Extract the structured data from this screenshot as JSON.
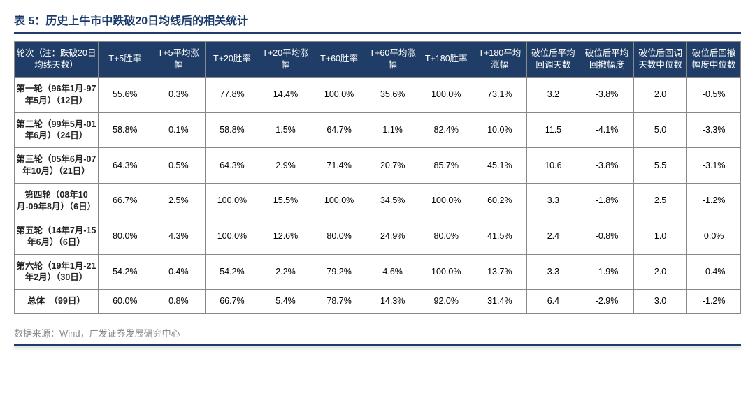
{
  "title": "表 5：历史上牛市中跌破20日均线后的相关统计",
  "source": "数据来源：Wind，广发证券发展研究中心",
  "colors": {
    "header_bg": "#1f3d66",
    "header_fg": "#ffffff",
    "title_fg": "#1a3a6b",
    "border": "#888888",
    "source_fg": "#8a8a8a",
    "rule": "#1f3d66",
    "bg": "#ffffff"
  },
  "table": {
    "columns": [
      "轮次（注：跌破20日均线天数）",
      "T+5胜率",
      "T+5平均涨幅",
      "T+20胜率",
      "T+20平均涨幅",
      "T+60胜率",
      "T+60平均涨幅",
      "T+180胜率",
      "T+180平均涨幅",
      "破位后平均回调天数",
      "破位后平均回撤幅度",
      "破位后回调天数中位数",
      "破位后回撤幅度中位数"
    ],
    "rows": [
      {
        "label": "第一轮（96年1月-97年5月）（12日）",
        "cells": [
          "55.6%",
          "0.3%",
          "77.8%",
          "14.4%",
          "100.0%",
          "35.6%",
          "100.0%",
          "73.1%",
          "3.2",
          "-3.8%",
          "2.0",
          "-0.5%"
        ]
      },
      {
        "label": "第二轮（99年5月-01年6月）（24日）",
        "cells": [
          "58.8%",
          "0.1%",
          "58.8%",
          "1.5%",
          "64.7%",
          "1.1%",
          "82.4%",
          "10.0%",
          "11.5",
          "-4.1%",
          "5.0",
          "-3.3%"
        ]
      },
      {
        "label": "第三轮（05年6月-07年10月）（21日）",
        "cells": [
          "64.3%",
          "0.5%",
          "64.3%",
          "2.9%",
          "71.4%",
          "20.7%",
          "85.7%",
          "45.1%",
          "10.6",
          "-3.8%",
          "5.5",
          "-3.1%"
        ]
      },
      {
        "label": "第四轮（08年10月-09年8月）（6日）",
        "cells": [
          "66.7%",
          "2.5%",
          "100.0%",
          "15.5%",
          "100.0%",
          "34.5%",
          "100.0%",
          "60.2%",
          "3.3",
          "-1.8%",
          "2.5",
          "-1.2%"
        ]
      },
      {
        "label": "第五轮（14年7月-15年6月）（6日）",
        "cells": [
          "80.0%",
          "4.3%",
          "100.0%",
          "12.6%",
          "80.0%",
          "24.9%",
          "80.0%",
          "41.5%",
          "2.4",
          "-0.8%",
          "1.0",
          "0.0%"
        ]
      },
      {
        "label": "第六轮（19年1月-21年2月）（30日）",
        "cells": [
          "54.2%",
          "0.4%",
          "54.2%",
          "2.2%",
          "79.2%",
          "4.6%",
          "100.0%",
          "13.7%",
          "3.3",
          "-1.9%",
          "2.0",
          "-0.4%"
        ]
      },
      {
        "label": "总体　（99日）",
        "cells": [
          "60.0%",
          "0.8%",
          "66.7%",
          "5.4%",
          "78.7%",
          "14.3%",
          "92.0%",
          "31.4%",
          "6.4",
          "-2.9%",
          "3.0",
          "-1.2%"
        ]
      }
    ]
  }
}
